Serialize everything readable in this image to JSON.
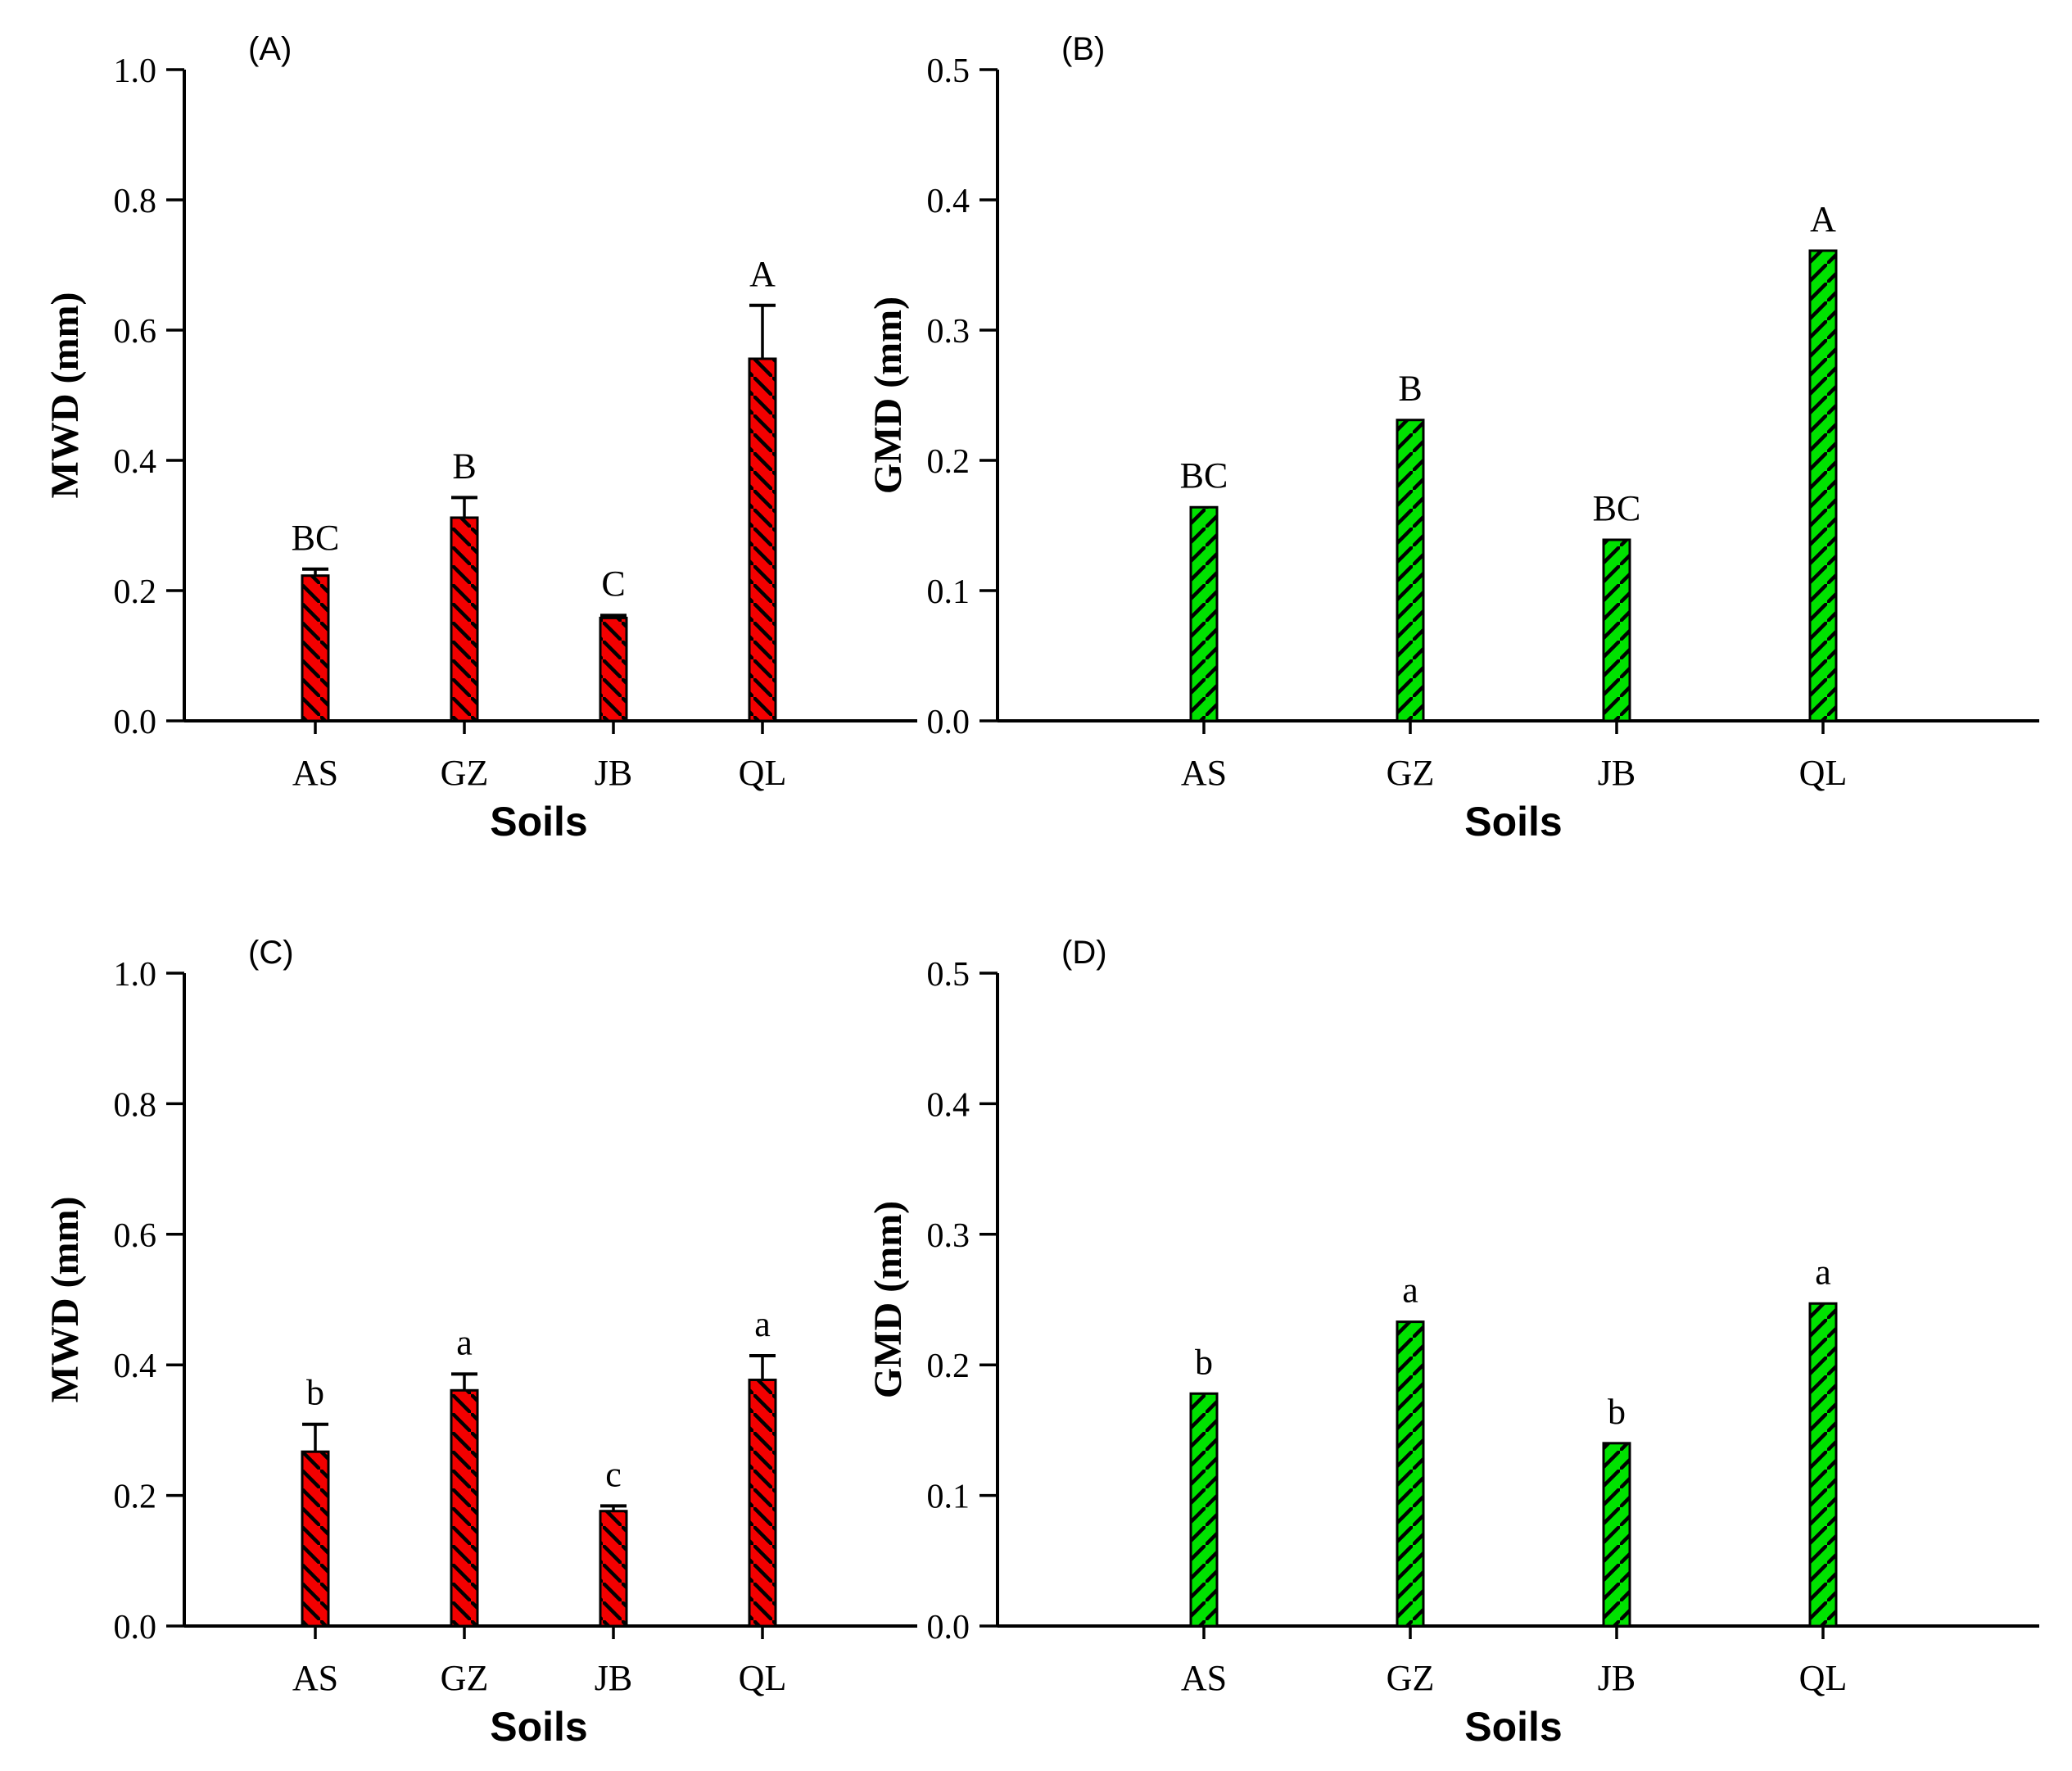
{
  "figure": {
    "description_visible_text_only": "Four-panel bar chart figure",
    "x_axis_title": "Soils",
    "categories": [
      "AS",
      "GZ",
      "JB",
      "QL"
    ]
  },
  "colors": {
    "red_bar": "#f30000",
    "green_bar": "#00e200",
    "axis": "#000000",
    "background": "#ffffff"
  },
  "chart_data": [
    {
      "type": "bar",
      "panel_label": "(A)",
      "ylabel": "MWD (mm)",
      "xlabel": "Soils",
      "categories": [
        "AS",
        "GZ",
        "JB",
        "QL"
      ],
      "values": [
        0.223,
        0.312,
        0.158,
        0.556
      ],
      "errors": [
        0.01,
        0.031,
        0.004,
        0.082
      ],
      "letters": [
        "BC",
        "B",
        "C",
        "A"
      ],
      "bar_color": "#f30000",
      "hatch": "\\",
      "ylim": [
        0,
        1.0
      ],
      "yticks": [
        0.0,
        0.2,
        0.4,
        0.6,
        0.8,
        1.0
      ],
      "grid": false,
      "legend": "none"
    },
    {
      "type": "bar",
      "panel_label": "(B)",
      "ylabel": "GMD (mm)",
      "xlabel": "Soils",
      "categories": [
        "AS",
        "GZ",
        "JB",
        "QL"
      ],
      "values": [
        0.164,
        0.231,
        0.139,
        0.361
      ],
      "errors": [
        0,
        0,
        0,
        0
      ],
      "letters": [
        "BC",
        "B",
        "BC",
        "A"
      ],
      "bar_color": "#00e200",
      "hatch": "/",
      "ylim": [
        0,
        0.5
      ],
      "yticks": [
        0.0,
        0.1,
        0.2,
        0.3,
        0.4,
        0.5
      ],
      "grid": false,
      "legend": "none"
    },
    {
      "type": "bar",
      "panel_label": "(C)",
      "ylabel": "MWD (mm)",
      "xlabel": "Soils",
      "categories": [
        "AS",
        "GZ",
        "JB",
        "QL"
      ],
      "values": [
        0.267,
        0.361,
        0.176,
        0.377
      ],
      "errors": [
        0.042,
        0.025,
        0.008,
        0.037
      ],
      "letters": [
        "b",
        "a",
        "c",
        "a"
      ],
      "bar_color": "#f30000",
      "hatch": "\\",
      "ylim": [
        0,
        1.0
      ],
      "yticks": [
        0.0,
        0.2,
        0.4,
        0.6,
        0.8,
        1.0
      ],
      "grid": false,
      "legend": "none"
    },
    {
      "type": "bar",
      "panel_label": "(D)",
      "ylabel": "GMD (mm)",
      "xlabel": "Soils",
      "categories": [
        "AS",
        "GZ",
        "JB",
        "QL"
      ],
      "values": [
        0.178,
        0.233,
        0.14,
        0.247
      ],
      "errors": [
        0,
        0,
        0,
        0
      ],
      "letters": [
        "b",
        "a",
        "b",
        "a"
      ],
      "bar_color": "#00e200",
      "hatch": "/",
      "ylim": [
        0,
        0.5
      ],
      "yticks": [
        0.0,
        0.1,
        0.2,
        0.3,
        0.4,
        0.5
      ],
      "grid": false,
      "legend": "none"
    }
  ]
}
